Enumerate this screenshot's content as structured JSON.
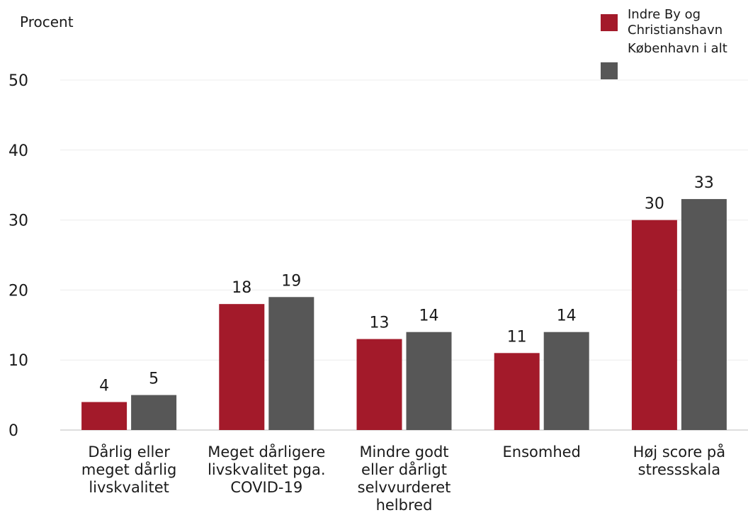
{
  "chart_data": {
    "type": "bar",
    "ylabel": "Procent",
    "ylim": [
      0,
      50
    ],
    "yticks": [
      0,
      10,
      20,
      30,
      40,
      50
    ],
    "grid": true,
    "legend_position": "top-right",
    "categories": [
      [
        "Dårlig eller",
        "meget dårlig",
        "livskvalitet"
      ],
      [
        "Meget dårligere",
        "livskvalitet pga.",
        "COVID-19"
      ],
      [
        "Mindre godt",
        "eller dårligt",
        "selvvurderet",
        "helbred"
      ],
      [
        "Ensomhed"
      ],
      [
        "Høj score på",
        "stressskala"
      ]
    ],
    "series": [
      {
        "name": [
          "Indre By og",
          "Christianshavn"
        ],
        "color": "#a31a2a",
        "values": [
          4,
          18,
          13,
          11,
          30
        ]
      },
      {
        "name": [
          "København i alt"
        ],
        "color": "#575757",
        "values": [
          5,
          19,
          14,
          14,
          33
        ]
      }
    ]
  }
}
